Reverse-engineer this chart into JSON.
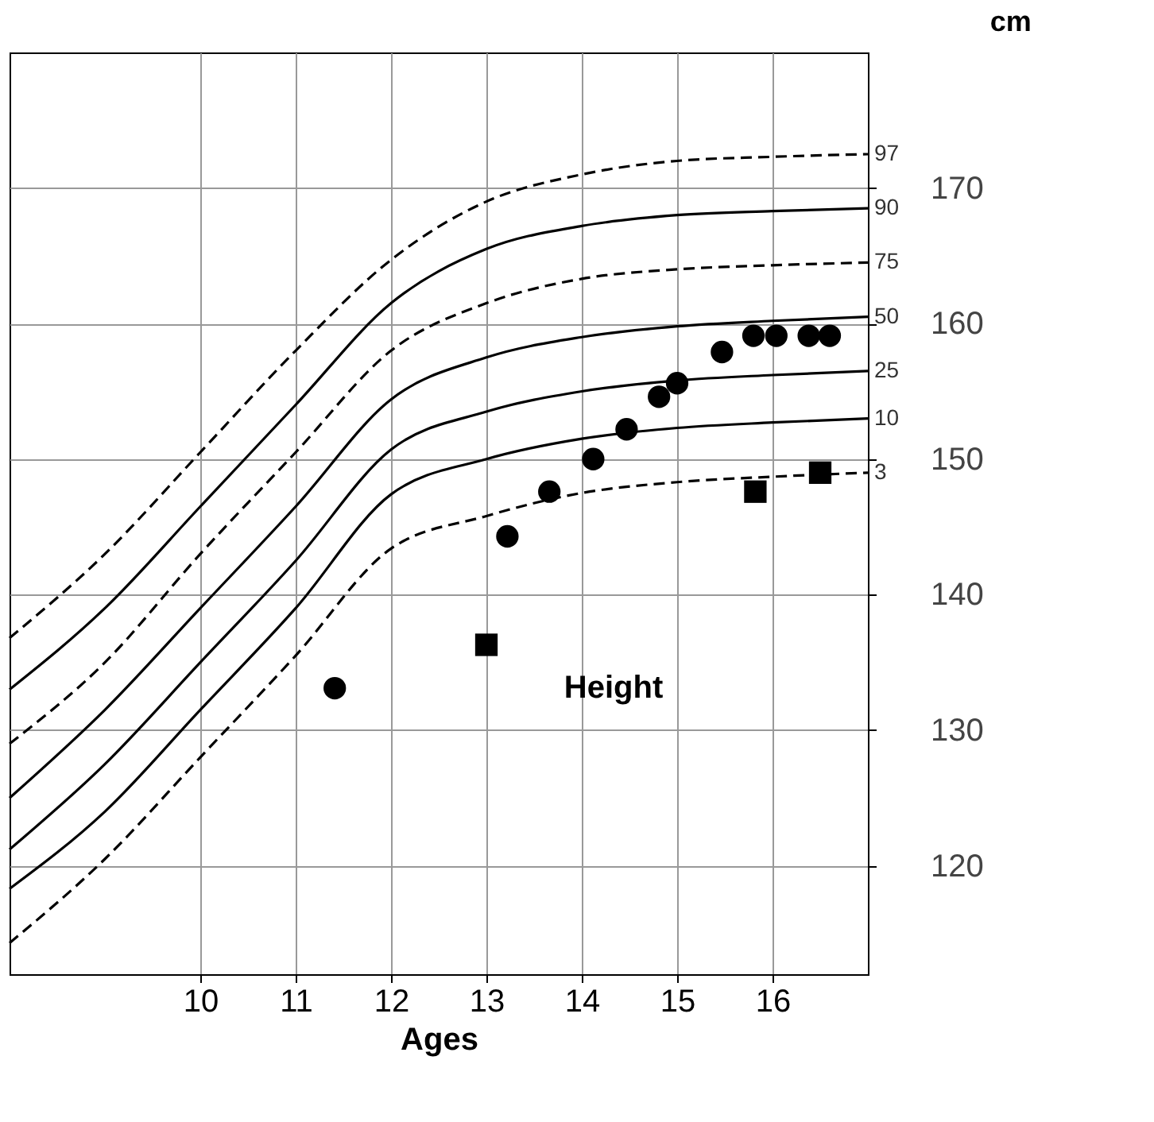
{
  "chart_data": {
    "type": "line",
    "xlabel": "Ages",
    "ylabel": "cm",
    "annotations": [
      "Height"
    ],
    "x": [
      8,
      9,
      10,
      11,
      12,
      13,
      14,
      15,
      16,
      17
    ],
    "xlim": [
      8,
      17
    ],
    "xticks": [
      10,
      11,
      12,
      13,
      14,
      15,
      16
    ],
    "ylim": [
      112,
      180
    ],
    "yticks": [
      120,
      130,
      140,
      150,
      160,
      170
    ],
    "grid": true,
    "marker": "none",
    "series": [
      {
        "name": "97",
        "color": "#000000",
        "line_style": "dashed",
        "values": [
          136.8,
          143,
          150.5,
          158,
          164.7,
          169,
          171,
          172,
          172.3,
          172.5
        ]
      },
      {
        "name": "90",
        "color": "#000000",
        "line_style": "solid",
        "values": [
          133,
          139,
          146.5,
          154,
          161.5,
          165.5,
          167.2,
          168,
          168.3,
          168.5
        ]
      },
      {
        "name": "75",
        "color": "#000000",
        "line_style": "dashed",
        "values": [
          129,
          135,
          143,
          150.5,
          158,
          161.5,
          163.3,
          164,
          164.3,
          164.5
        ]
      },
      {
        "name": "50",
        "color": "#000000",
        "line_style": "solid",
        "values": [
          125,
          131.5,
          139,
          146.5,
          154.4,
          157.5,
          159,
          159.8,
          160.2,
          160.5
        ]
      },
      {
        "name": "25",
        "color": "#000000",
        "line_style": "solid",
        "values": [
          121.2,
          127.5,
          135,
          142.5,
          150.7,
          153.5,
          155,
          155.8,
          156.2,
          156.5
        ]
      },
      {
        "name": "10",
        "color": "#000000",
        "line_style": "solid",
        "values": [
          118.3,
          124,
          131.5,
          139,
          147.4,
          150,
          151.5,
          152.3,
          152.7,
          153
        ]
      },
      {
        "name": "3",
        "color": "#000000",
        "line_style": "dashed",
        "values": [
          114.3,
          120.5,
          128,
          135.5,
          143.4,
          145.8,
          147.5,
          148.3,
          148.7,
          149
        ]
      },
      {
        "type": "scatter",
        "marker": "circle",
        "color": "#000000",
        "x": [
          11.41,
          13.22,
          13.66,
          14.12,
          14.47,
          14.81,
          15.0,
          15.47,
          15.8,
          16.04,
          16.38,
          16.6
        ],
        "values": [
          133.1,
          144.3,
          147.6,
          150.0,
          152.2,
          154.6,
          155.6,
          157.9,
          159.1,
          159.1,
          159.1,
          159.1
        ]
      },
      {
        "type": "scatter",
        "marker": "square",
        "color": "#000000",
        "x": [
          13.0,
          15.82,
          16.5
        ],
        "values": [
          136.3,
          147.6,
          149.0
        ]
      }
    ]
  }
}
